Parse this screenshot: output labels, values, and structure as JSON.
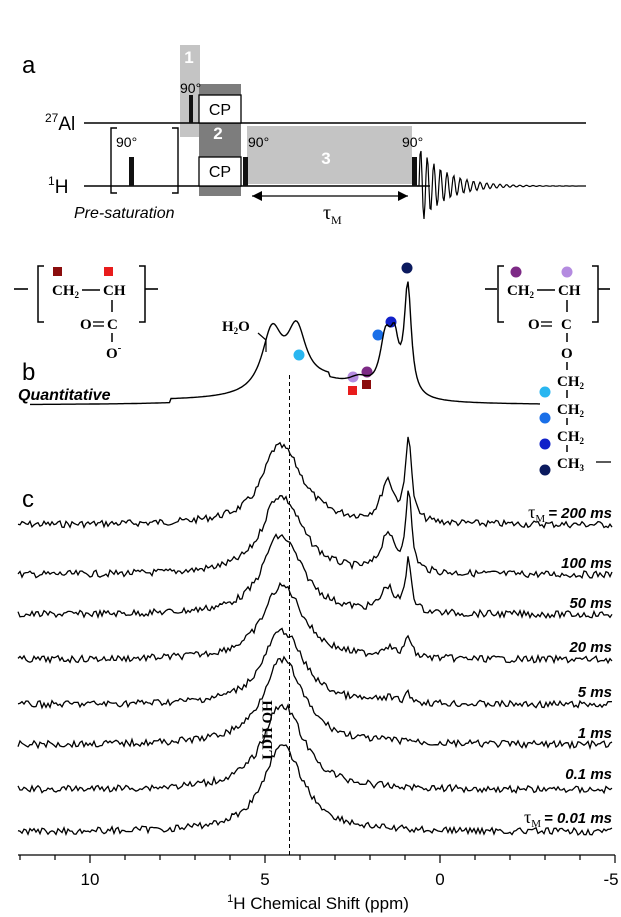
{
  "panel_labels": {
    "a": "a",
    "b": "b",
    "c": "c"
  },
  "pulse_sequence": {
    "al_channel": {
      "sup": "27",
      "name": "Al"
    },
    "h_channel": {
      "sup": "1",
      "name": "H"
    },
    "pulse_90": "90°",
    "cp": "CP",
    "block_numbers": [
      "1",
      "2",
      "3"
    ],
    "presaturation": "Pre-saturation",
    "tau_symbol": "τ",
    "tau_sub": "M"
  },
  "structures": {
    "left": {
      "ch2": "CH",
      "ch2_sub": "2",
      "ch": "CH",
      "carbonyl_o": "O",
      "c": "C",
      "o_minus": "O",
      "minus": "-"
    },
    "right": {
      "ch2": "CH",
      "ch2_sub": "2",
      "ch": "CH",
      "carbonyl_o": "O",
      "c": "C",
      "ester_o": "O",
      "ch2_sub_chain": "2",
      "ch3_sub": "3"
    },
    "water": {
      "h": "H",
      "h_sub": "2",
      "o": "O"
    }
  },
  "spectrum_labels": {
    "quantitative": "Quantitative",
    "ldh_oh": "LDH OH",
    "tau_symbol": "τ",
    "tau_sub": "M",
    "mixing_times": [
      "= 200 ms",
      "100 ms",
      "50 ms",
      "20 ms",
      "5 ms",
      "1 ms",
      "0.1 ms",
      "= 0.01 ms"
    ]
  },
  "colors": {
    "dark_red": "#8b0d0d",
    "red": "#e81c1c",
    "light_purple": "#b48be0",
    "dark_purple": "#7d2a86",
    "light_blue": "#29b6f0",
    "mid_blue": "#1a6fe8",
    "blue": "#1121c9",
    "navy": "#0b1a5e"
  },
  "chart_data": {
    "type": "line",
    "xlabel_sup": "1",
    "xlabel": "H Chemical Shift (ppm)",
    "xlim": [
      12,
      -5
    ],
    "xticks": [
      "10",
      "5",
      "0",
      "-5"
    ],
    "dashed_line_ppm": 4.3,
    "quantitative_peaks_ppm": [
      4.8,
      4.1,
      1.6,
      1.3,
      0.9
    ],
    "series": [
      {
        "name": "τM = 200 ms",
        "peaks_ppm": [
          4.8,
          4.2,
          1.5,
          0.9
        ]
      },
      {
        "name": "100 ms",
        "peaks_ppm": [
          4.6,
          4.2,
          1.5,
          0.9
        ]
      },
      {
        "name": "50 ms",
        "peaks_ppm": [
          4.5,
          4.3,
          1.5,
          0.9
        ]
      },
      {
        "name": "20 ms",
        "peaks_ppm": [
          4.4,
          1.5,
          0.9
        ]
      },
      {
        "name": "5 ms",
        "peaks_ppm": [
          4.3,
          0.9
        ]
      },
      {
        "name": "1 ms",
        "peaks_ppm": [
          4.3
        ]
      },
      {
        "name": "0.1 ms",
        "peaks_ppm": [
          4.3
        ]
      },
      {
        "name": "τM = 0.01 ms",
        "peaks_ppm": [
          4.3
        ]
      }
    ]
  }
}
